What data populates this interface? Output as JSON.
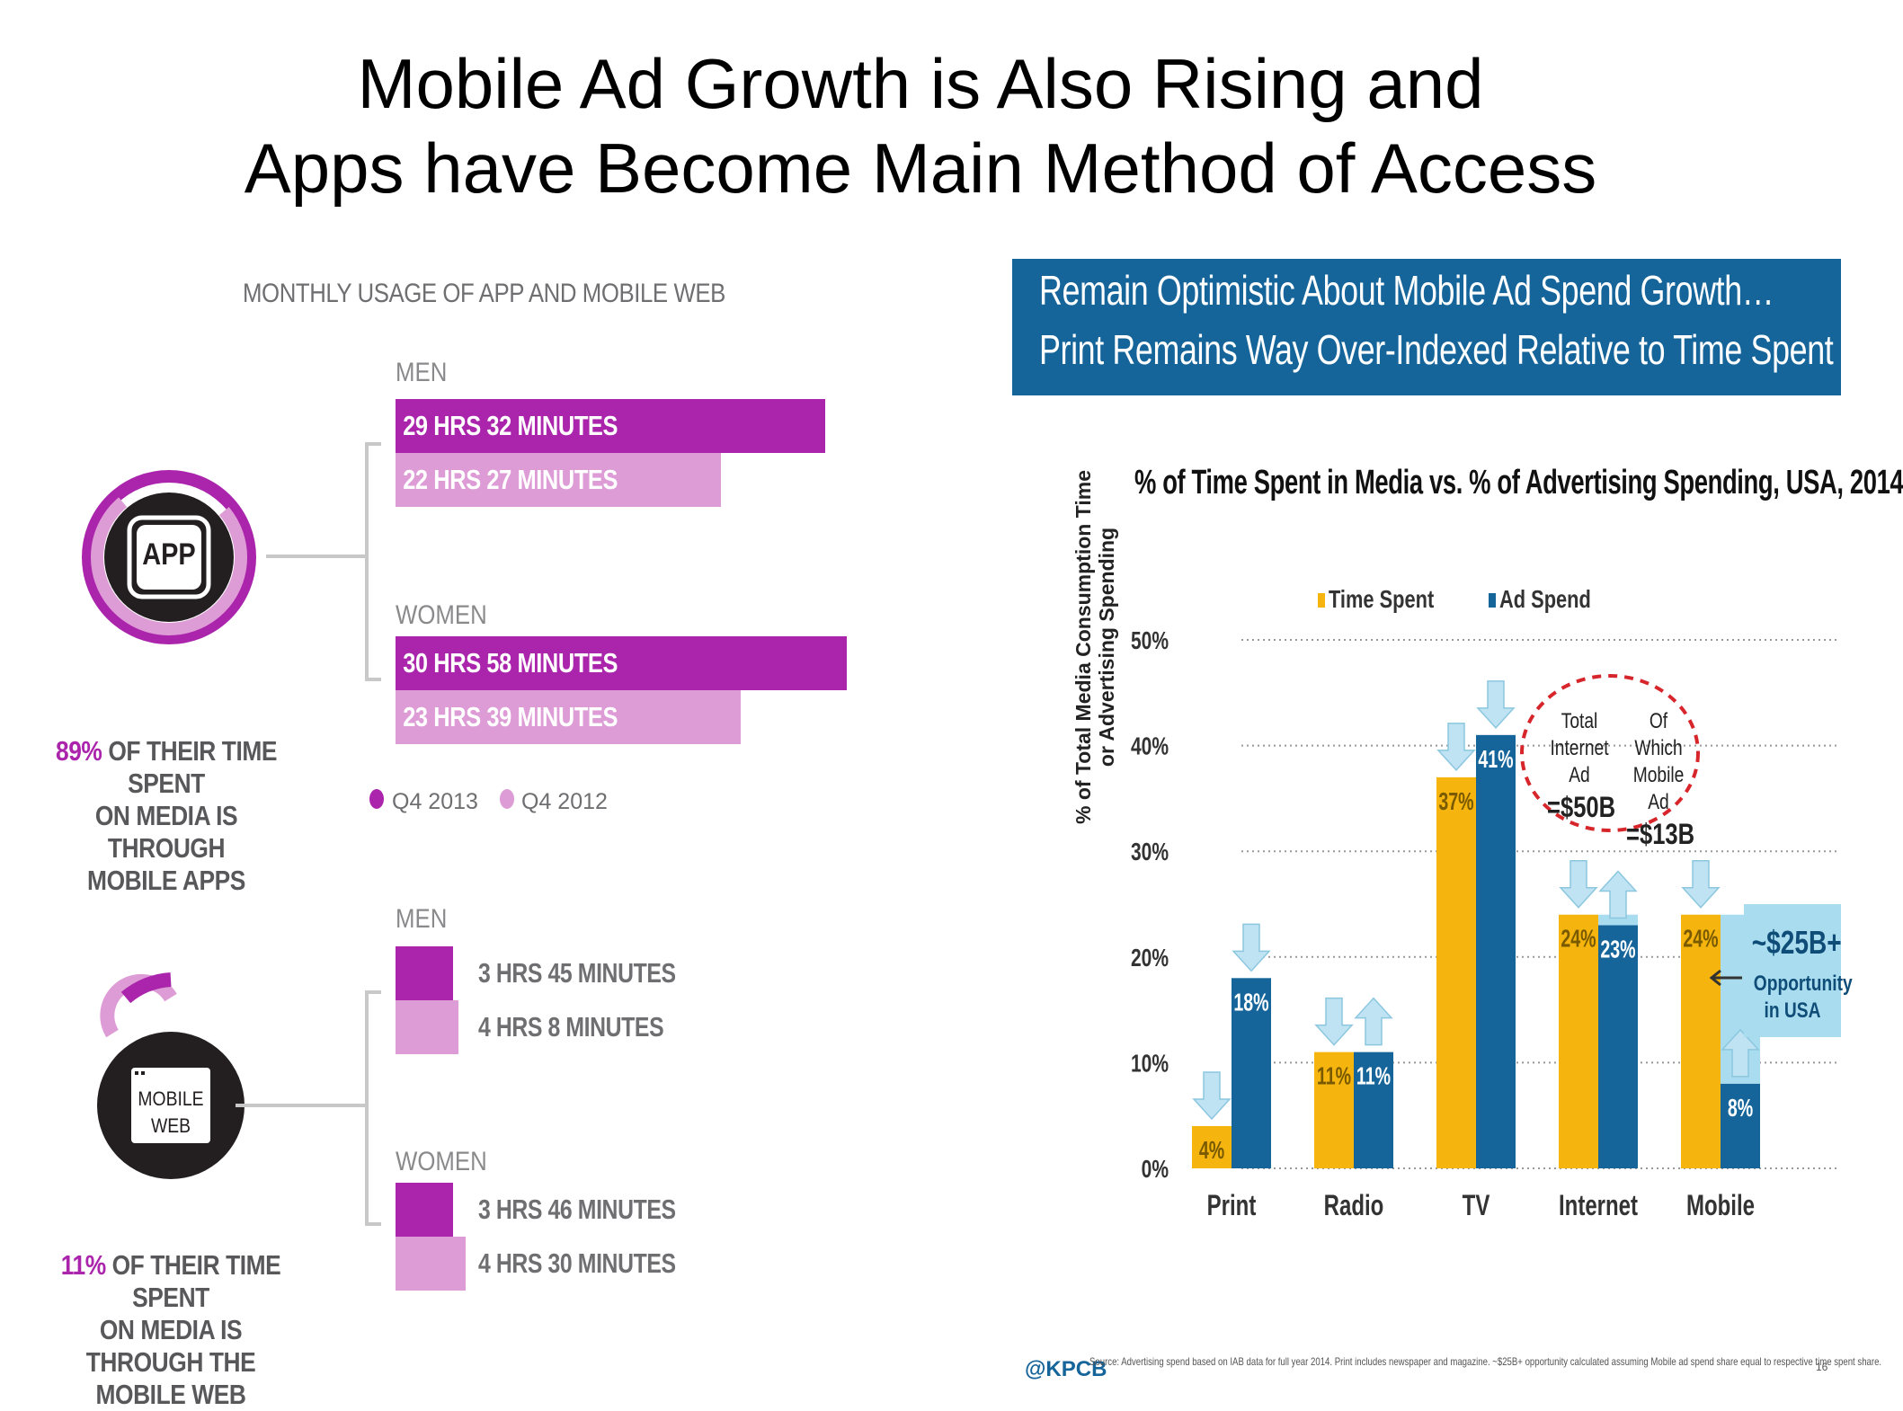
{
  "slide": {
    "title_line1": "Mobile Ad Growth is Also Rising and",
    "title_line2": "Apps have Become Main Method of Access"
  },
  "usage": {
    "title": "MONTHLY USAGE OF APP AND MOBILE WEB",
    "app_icon_label": "APP",
    "app": {
      "men_label": "MEN",
      "women_label": "WOMEN",
      "men_q4_2013": "29 HRS 32 MINUTES",
      "men_q4_2012": "22 HRS 27 MINUTES",
      "women_q4_2013": "30 HRS 58 MINUTES",
      "women_q4_2012": "23 HRS 39 MINUTES",
      "caption_pct": "89%",
      "caption_line1": " OF THEIR TIME SPENT",
      "caption_line2": "ON MEDIA IS THROUGH",
      "caption_line3": "MOBILE APPS"
    },
    "legend": {
      "q4_2013": "Q4 2013",
      "q4_2012": "Q4 2012"
    },
    "web": {
      "icon_line1": "MOBILE",
      "icon_line2": "WEB",
      "men_label": "MEN",
      "women_label": "WOMEN",
      "men_q4_2013": "3 HRS 45 MINUTES",
      "men_q4_2012": "4 HRS 8 MINUTES",
      "women_q4_2013": "3 HRS 46 MINUTES",
      "women_q4_2012": "4 HRS 30 MINUTES",
      "caption_pct": "11%",
      "caption_line1": " OF THEIR TIME SPENT",
      "caption_line2": "ON MEDIA IS THROUGH THE",
      "caption_line3": "MOBILE WEB"
    },
    "colors": {
      "q4_2013": "#ab24ac",
      "q4_2012": "#de9cd6"
    }
  },
  "kpcb": {
    "header_line1": "Remain Optimistic About Mobile Ad Spend Growth…",
    "header_line2": "Print Remains Way Over-Indexed Relative to Time Spent",
    "internet_callout": {
      "col1_line1": "Total",
      "col1_line2": "Internet Ad",
      "col1_value": "=$50B",
      "col2_line1": "Of Which",
      "col2_line2": "Mobile Ad",
      "col2_value": "=$13B"
    },
    "opportunity": {
      "value": "~$25B+",
      "line1": "Opportunity",
      "line2": "in USA"
    },
    "source_logo": "@KPCB",
    "source_text": "Source: Advertising spend based on IAB data for full year 2014. Print includes newspaper and magazine. ~$25B+ opportunity calculated assuming Mobile ad spend share equal to respective time spent share.",
    "page_number": "16"
  },
  "chart_data": [
    {
      "type": "bar",
      "title": "MONTHLY USAGE OF APP AND MOBILE WEB",
      "unit": "minutes per month",
      "categories": [
        "App - Men",
        "App - Women",
        "Mobile Web - Men",
        "Mobile Web - Women"
      ],
      "series": [
        {
          "name": "Q4 2013",
          "values": [
            1772,
            1858,
            225,
            226
          ]
        },
        {
          "name": "Q4 2012",
          "values": [
            1347,
            1419,
            248,
            270
          ]
        }
      ]
    },
    {
      "type": "bar",
      "title": "% of Time Spent in Media vs. % of Advertising Spending, USA, 2014",
      "xlabel": "",
      "ylabel": "% of Total Media Consumption Time or Advertising Spending",
      "ylabel_line1": "% of Total Media Consumption Time",
      "ylabel_line2": "or Advertising Spending",
      "categories": [
        "Print",
        "Radio",
        "TV",
        "Internet",
        "Mobile"
      ],
      "series": [
        {
          "name": "Time Spent",
          "color": "#f5b50e",
          "values": [
            4,
            11,
            37,
            24,
            24
          ],
          "labels": [
            "4%",
            "11%",
            "37%",
            "24%",
            "24%"
          ]
        },
        {
          "name": "Ad Spend",
          "color": "#15649a",
          "values": [
            18,
            11,
            41,
            23,
            8
          ],
          "labels": [
            "18%",
            "11%",
            "41%",
            "23%",
            "8%"
          ]
        }
      ],
      "opportunity_gap": {
        "category": "Mobile",
        "from": 8,
        "to": 24,
        "color": "#a8dcee"
      },
      "ylim": [
        0,
        50
      ],
      "yticks": [
        0,
        10,
        20,
        30,
        40,
        50
      ],
      "ytick_labels": [
        "0%",
        "10%",
        "20%",
        "30%",
        "40%",
        "50%"
      ],
      "grid": true,
      "legend": "top-center"
    }
  ]
}
